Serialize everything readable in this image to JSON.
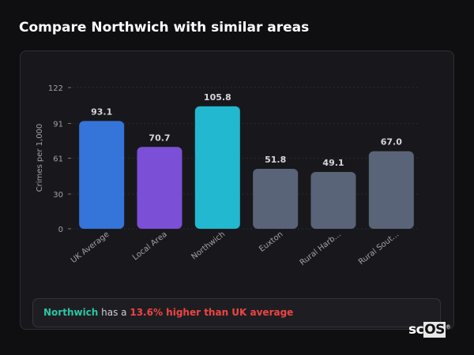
{
  "header": {
    "title": "Compare Northwich with similar areas"
  },
  "chart_data": {
    "type": "bar",
    "title": "",
    "xlabel": "",
    "ylabel": "Crimes per 1,000",
    "ylim": [
      0,
      122
    ],
    "yticks": [
      0,
      30,
      61,
      91,
      122
    ],
    "grid": true,
    "categories": [
      "UK Average",
      "Local Area",
      "Northwich",
      "Euxton",
      "Rural Harb...",
      "Rural Sout..."
    ],
    "values": [
      93.1,
      70.7,
      105.8,
      51.8,
      49.1,
      67.0
    ],
    "value_labels": [
      "93.1",
      "70.7",
      "105.8",
      "51.8",
      "49.1",
      "67.0"
    ],
    "colors": [
      "#3574d9",
      "#7b4fd6",
      "#22b8cf",
      "#5a6478",
      "#5a6478",
      "#5a6478"
    ]
  },
  "summary": {
    "area": "Northwich",
    "middle": " has a ",
    "comparison": "13.6% higher than UK average"
  },
  "logo": {
    "text_a": "sc",
    "text_b": "OS"
  }
}
